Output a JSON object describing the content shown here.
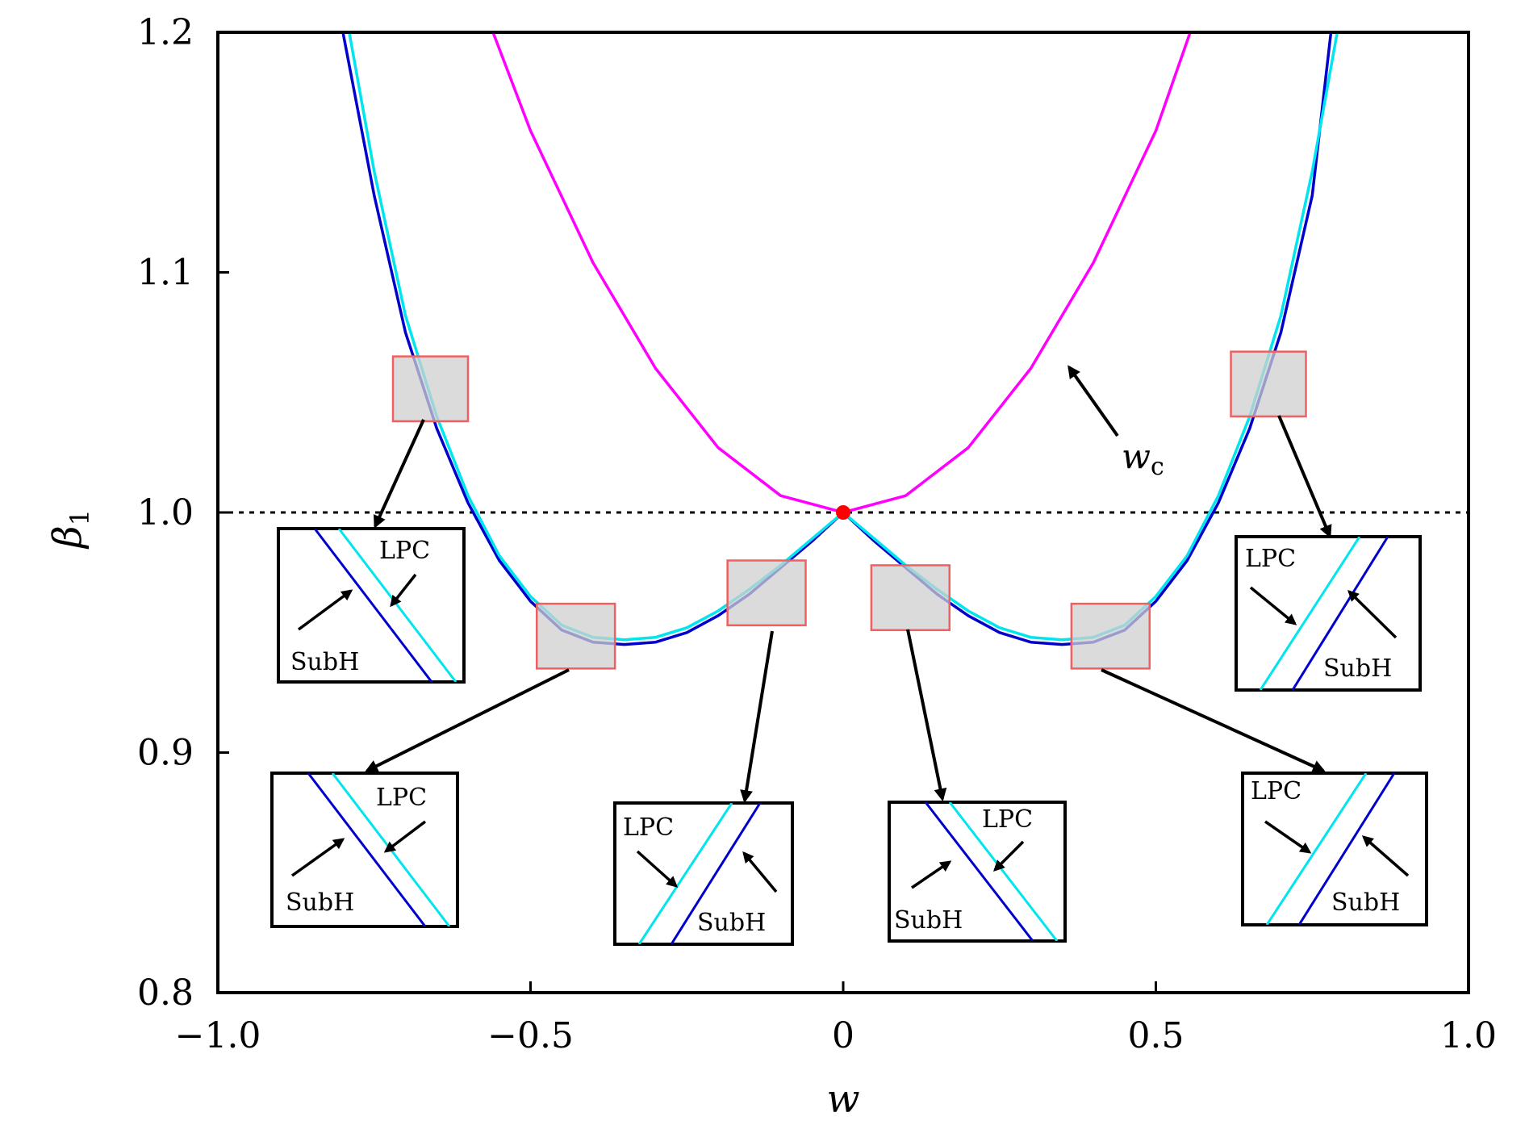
{
  "chart_data": {
    "type": "line",
    "xlabel": "w",
    "ylabel": "β",
    "ylabel_sub": "1",
    "xlim": [
      -1.0,
      1.0
    ],
    "ylim": [
      0.8,
      1.2
    ],
    "x_ticks": [
      {
        "value": -1.0,
        "label": "−1.0"
      },
      {
        "value": -0.5,
        "label": "−0.5"
      },
      {
        "value": 0,
        "label": "0"
      },
      {
        "value": 0.5,
        "label": "0.5"
      },
      {
        "value": 1.0,
        "label": "1.0"
      }
    ],
    "y_ticks": [
      {
        "value": 0.8,
        "label": "0.8"
      },
      {
        "value": 0.9,
        "label": "0.9"
      },
      {
        "value": 1.0,
        "label": "1.0"
      },
      {
        "value": 1.1,
        "label": "1.1"
      },
      {
        "value": 1.2,
        "label": "1.2"
      }
    ],
    "reference_line": {
      "y": 1.0,
      "style": "dotted",
      "color": "#000000"
    },
    "series": [
      {
        "color": "#ff00ff",
        "x": [
          -0.56,
          -0.5,
          -0.4,
          -0.3,
          -0.2,
          -0.1,
          0.0,
          0.1,
          0.2,
          0.3,
          0.4,
          0.5,
          0.555
        ],
        "y": [
          1.2,
          1.159,
          1.104,
          1.06,
          1.027,
          1.007,
          1.0,
          1.007,
          1.027,
          1.06,
          1.104,
          1.159,
          1.2
        ]
      },
      {
        "color": "#0000cc",
        "x": [
          -0.8,
          -0.75,
          -0.7,
          -0.65,
          -0.6,
          -0.55,
          -0.5,
          -0.45,
          -0.4,
          -0.35,
          -0.3,
          -0.25,
          -0.2,
          -0.15,
          -0.1,
          -0.05,
          0.0,
          0.05,
          0.1,
          0.15,
          0.2,
          0.25,
          0.3,
          0.35,
          0.4,
          0.45,
          0.5,
          0.55,
          0.6,
          0.65,
          0.7,
          0.75,
          0.78
        ],
        "y": [
          1.2,
          1.132,
          1.075,
          1.035,
          1.004,
          0.98,
          0.963,
          0.951,
          0.946,
          0.945,
          0.946,
          0.95,
          0.957,
          0.966,
          0.977,
          0.988,
          1.0,
          0.988,
          0.977,
          0.966,
          0.957,
          0.95,
          0.946,
          0.945,
          0.946,
          0.951,
          0.963,
          0.98,
          1.004,
          1.035,
          1.075,
          1.132,
          1.2
        ]
      },
      {
        "color": "#00e5ee",
        "x": [
          -0.79,
          -0.75,
          -0.7,
          -0.65,
          -0.6,
          -0.55,
          -0.5,
          -0.45,
          -0.4,
          -0.35,
          -0.3,
          -0.25,
          -0.2,
          -0.15,
          -0.1,
          -0.05,
          0.0,
          0.05,
          0.1,
          0.15,
          0.2,
          0.25,
          0.3,
          0.35,
          0.4,
          0.45,
          0.5,
          0.55,
          0.6,
          0.65,
          0.7,
          0.75,
          0.79
        ],
        "y": [
          1.2,
          1.142,
          1.082,
          1.04,
          1.007,
          0.982,
          0.965,
          0.953,
          0.948,
          0.947,
          0.948,
          0.952,
          0.959,
          0.968,
          0.978,
          0.989,
          1.0,
          0.989,
          0.978,
          0.968,
          0.959,
          0.952,
          0.948,
          0.947,
          0.948,
          0.953,
          0.965,
          0.982,
          1.007,
          1.04,
          1.082,
          1.142,
          1.2
        ]
      }
    ],
    "points": [
      {
        "x": 0,
        "y": 1.0,
        "color": "#ff0000"
      }
    ],
    "annotations": {
      "wc_label": "w",
      "wc_sub": "c",
      "lpc_label": "LPC",
      "subh_label": "SubH"
    },
    "highlight_regions": [
      {
        "x": [
          -0.72,
          -0.6
        ],
        "y": [
          1.038,
          1.065
        ]
      },
      {
        "x": [
          -0.49,
          -0.365
        ],
        "y": [
          0.935,
          0.962
        ]
      },
      {
        "x": [
          -0.185,
          -0.06
        ],
        "y": [
          0.953,
          0.98
        ]
      },
      {
        "x": [
          0.045,
          0.17
        ],
        "y": [
          0.951,
          0.978
        ]
      },
      {
        "x": [
          0.365,
          0.49
        ],
        "y": [
          0.935,
          0.962
        ]
      },
      {
        "x": [
          0.62,
          0.74
        ],
        "y": [
          1.04,
          1.067
        ]
      }
    ]
  }
}
